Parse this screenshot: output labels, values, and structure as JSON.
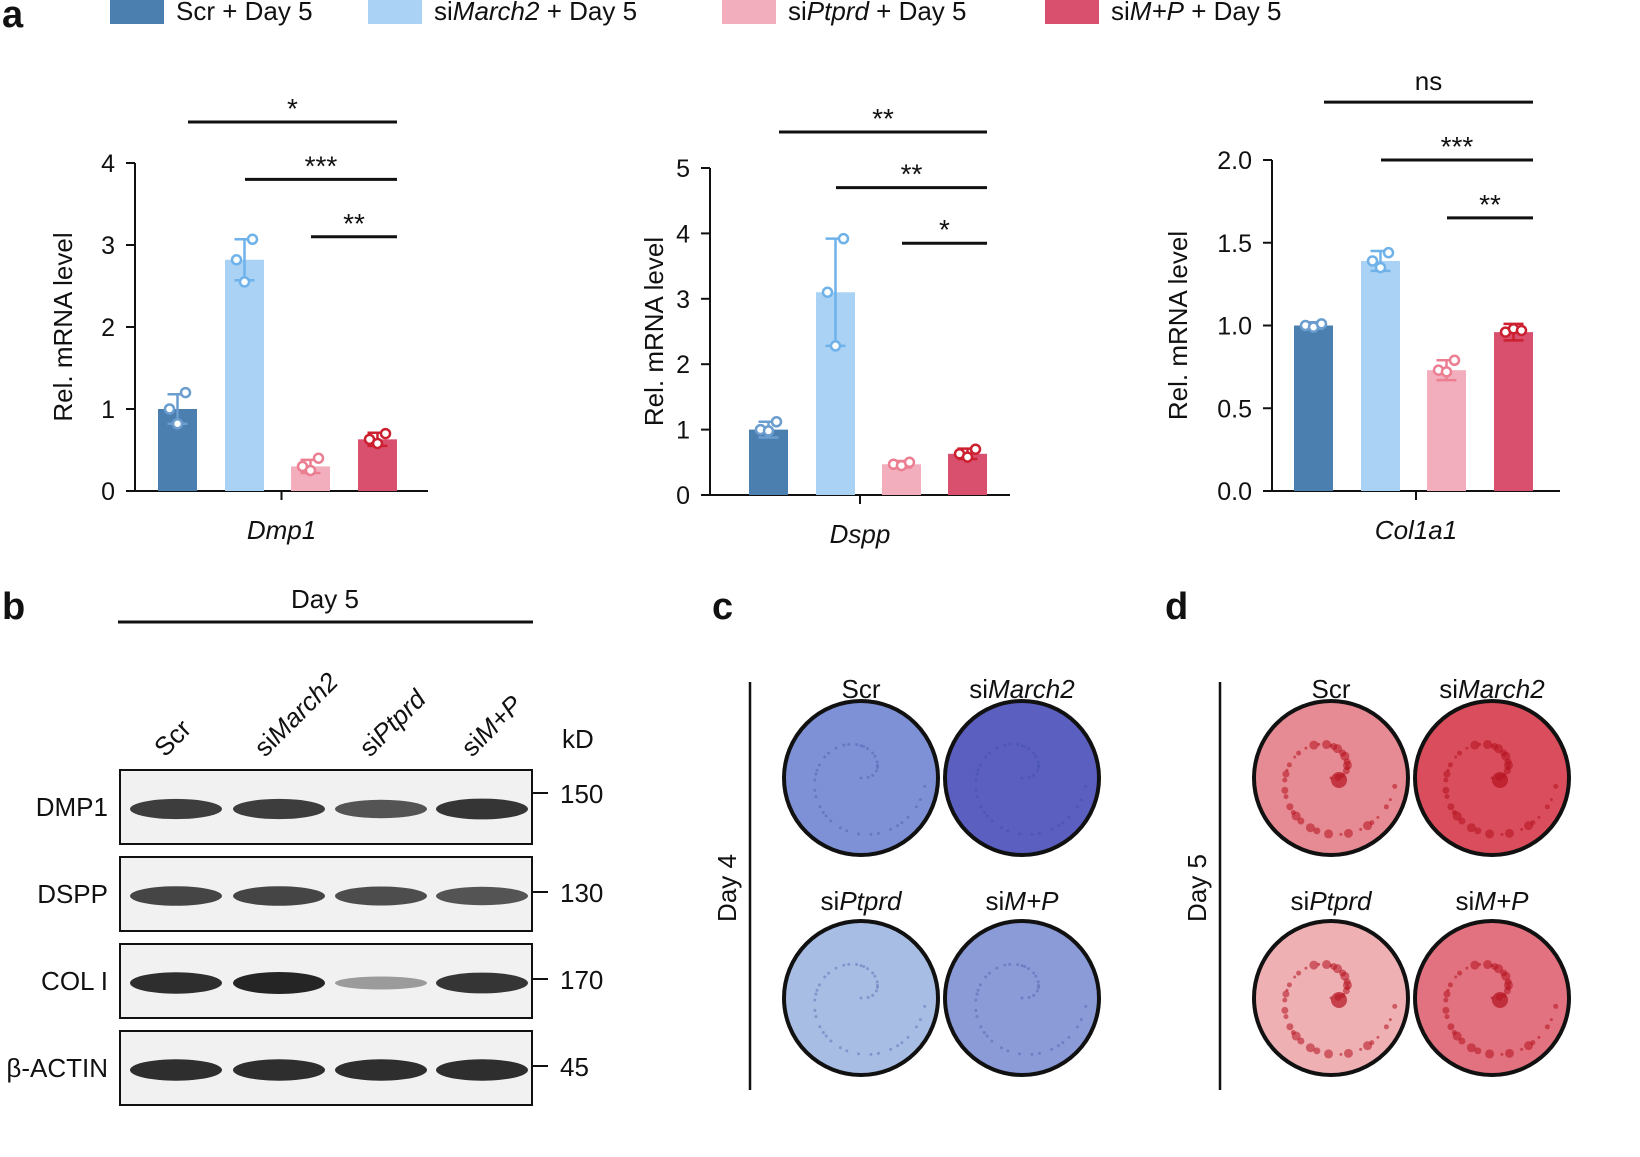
{
  "panels": {
    "a": "a",
    "b": "b",
    "c": "c",
    "d": "d"
  },
  "legend": [
    {
      "pre": "Scr + Day 5",
      "ital": "",
      "post": "",
      "color": "#4a7fb0"
    },
    {
      "pre": "si",
      "ital": "March2",
      "post": " + Day 5",
      "color": "#a9d2f5"
    },
    {
      "pre": "si",
      "ital": "Ptprd",
      "post": " + Day 5",
      "color": "#f3aebd"
    },
    {
      "pre": "si",
      "ital": "M+P",
      "post": " + Day 5",
      "color": "#d9506f"
    }
  ],
  "colors": {
    "scr": "#4a7fb0",
    "march2": "#a9d2f5",
    "ptprd": "#f3aebd",
    "mp": "#d9506f",
    "scr_pt": "#6b9dcf",
    "march2_pt": "#6fb2ea",
    "ptprd_pt": "#ec7e92",
    "mp_pt": "#cc1f2f"
  },
  "chart_data": [
    {
      "type": "bar",
      "gene": "Dmp1",
      "ylabel": "Rel. mRNA level",
      "ylim": [
        0,
        4
      ],
      "yticks": [
        "0",
        "1",
        "2",
        "3",
        "4"
      ],
      "values": [
        1.0,
        2.82,
        0.3,
        0.63
      ],
      "sd": [
        0.18,
        0.25,
        0.08,
        0.08
      ],
      "points": [
        [
          1.0,
          0.82,
          1.2
        ],
        [
          2.82,
          2.55,
          3.07
        ],
        [
          0.3,
          0.25,
          0.4
        ],
        [
          0.63,
          0.58,
          0.7
        ]
      ],
      "sig": [
        {
          "from": 0,
          "to": 3,
          "label": "*",
          "y": 4.5
        },
        {
          "from": 1,
          "to": 3,
          "label": "***",
          "y": 3.8
        },
        {
          "from": 2,
          "to": 3,
          "label": "**",
          "y": 3.1
        }
      ]
    },
    {
      "type": "bar",
      "gene": "Dspp",
      "ylabel": "Rel. mRNA level",
      "ylim": [
        0,
        5
      ],
      "yticks": [
        "0",
        "1",
        "2",
        "3",
        "4",
        "5"
      ],
      "values": [
        1.0,
        3.1,
        0.47,
        0.63
      ],
      "sd": [
        0.12,
        0.82,
        0.05,
        0.08
      ],
      "points": [
        [
          1.0,
          0.98,
          1.12
        ],
        [
          3.1,
          2.28,
          3.92
        ],
        [
          0.47,
          0.45,
          0.5
        ],
        [
          0.63,
          0.58,
          0.7
        ]
      ],
      "sig": [
        {
          "from": 0,
          "to": 3,
          "label": "**",
          "y": 5.55
        },
        {
          "from": 1,
          "to": 3,
          "label": "**",
          "y": 4.7
        },
        {
          "from": 2,
          "to": 3,
          "label": "*",
          "y": 3.85
        }
      ]
    },
    {
      "type": "bar",
      "gene": "Col1a1",
      "ylabel": "Rel. mRNA level",
      "ylim": [
        0,
        2
      ],
      "yticks": [
        "0.0",
        "0.5",
        "1.0",
        "1.5",
        "2.0"
      ],
      "values": [
        1.0,
        1.39,
        0.73,
        0.96
      ],
      "sd": [
        0.02,
        0.06,
        0.06,
        0.05
      ],
      "points": [
        [
          1.0,
          0.99,
          1.01
        ],
        [
          1.39,
          1.35,
          1.44
        ],
        [
          0.73,
          0.72,
          0.79
        ],
        [
          0.96,
          0.98,
          0.97
        ]
      ],
      "sig": [
        {
          "from": 0,
          "to": 3,
          "label": "ns",
          "y": 2.35
        },
        {
          "from": 1,
          "to": 3,
          "label": "***",
          "y": 2.0
        },
        {
          "from": 2,
          "to": 3,
          "label": "**",
          "y": 1.65
        }
      ]
    }
  ],
  "western": {
    "header": "Day 5",
    "lanes": [
      {
        "pre": "Scr",
        "ital": ""
      },
      {
        "pre": "si",
        "ital": "March2"
      },
      {
        "pre": "si",
        "ital": "Ptprd"
      },
      {
        "pre": "si",
        "ital": "M+P"
      }
    ],
    "kd_label": "kD",
    "rows": [
      {
        "protein": "DMP1",
        "kd": "150",
        "intensity": [
          0.85,
          0.85,
          0.7,
          0.9
        ]
      },
      {
        "protein": "DSPP",
        "kd": "130",
        "intensity": [
          0.8,
          0.8,
          0.75,
          0.7
        ]
      },
      {
        "protein": "COL I",
        "kd": "170",
        "intensity": [
          0.95,
          1.0,
          0.25,
          0.9
        ]
      },
      {
        "protein": "β-ACTIN",
        "kd": "45",
        "intensity": [
          0.95,
          0.95,
          0.95,
          0.95
        ]
      }
    ]
  },
  "stain_c": {
    "day": "Day 4",
    "labels": [
      {
        "pre": "Scr",
        "ital": ""
      },
      {
        "pre": "si",
        "ital": "March2"
      },
      {
        "pre": "si",
        "ital": "Ptprd"
      },
      {
        "pre": "si",
        "ital": "M+P"
      }
    ],
    "colors": [
      "#7f91d6",
      "#5a5fc0",
      "#a8bde3",
      "#8a9bd8"
    ]
  },
  "stain_d": {
    "day": "Day 5",
    "labels": [
      {
        "pre": "Scr",
        "ital": ""
      },
      {
        "pre": "si",
        "ital": "March2"
      },
      {
        "pre": "si",
        "ital": "Ptprd"
      },
      {
        "pre": "si",
        "ital": "M+P"
      }
    ],
    "colors": [
      "#e68a93",
      "#d94d5c",
      "#efb0b4",
      "#e2727f"
    ]
  }
}
